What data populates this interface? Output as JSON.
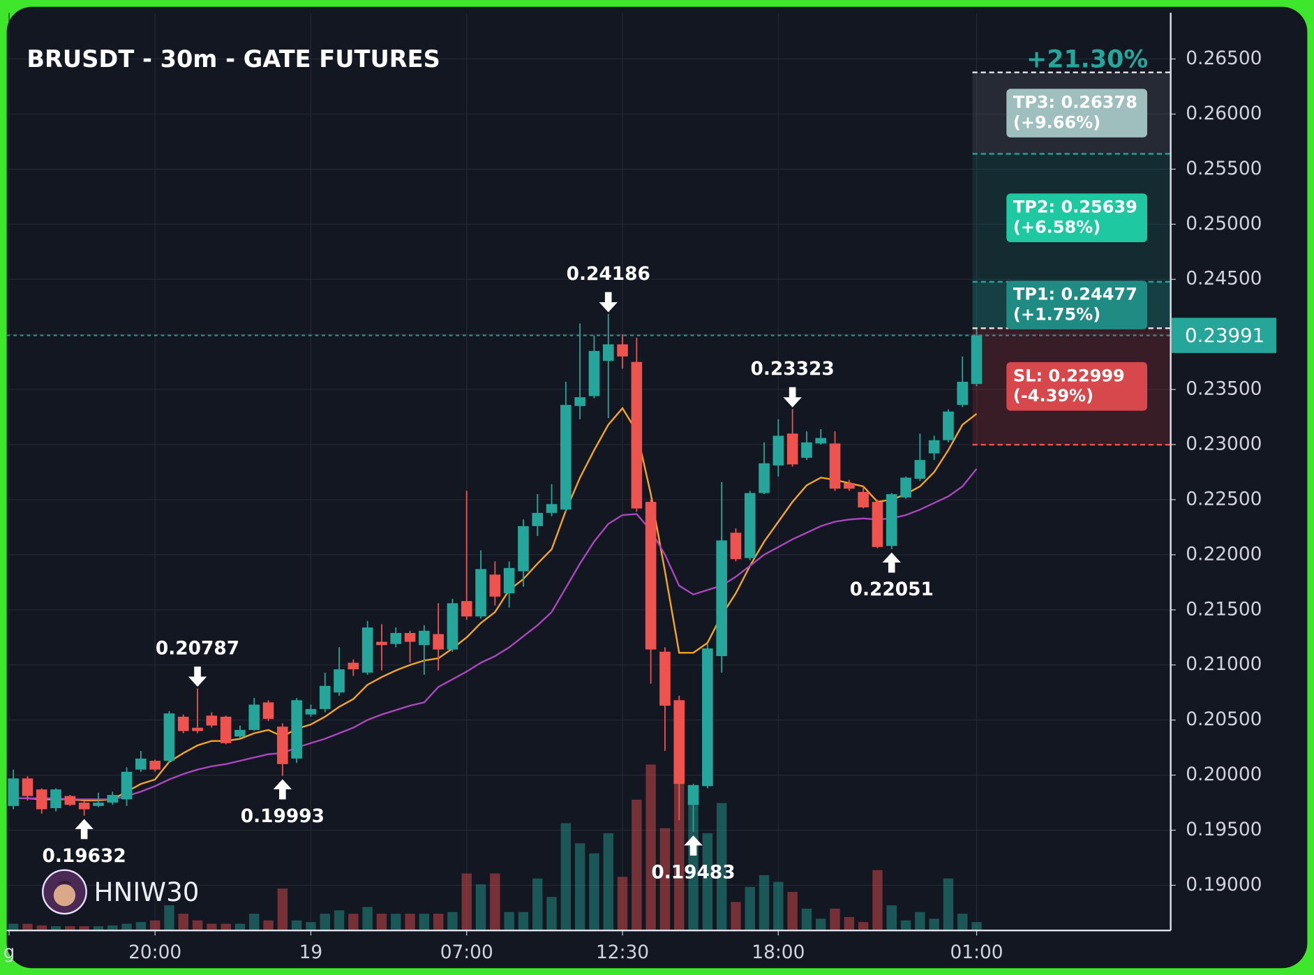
{
  "chart_data": {
    "type": "candlestick",
    "title": "BRUSDT - 30m - GATE FUTURES",
    "watermark": "HNIW30",
    "up_color": "#26a69a",
    "down_color": "#ef5350",
    "grid": true,
    "ylim": [
      0.1859,
      0.2692
    ],
    "yticks": [
      {
        "value": 0.19,
        "label": "0.19000"
      },
      {
        "value": 0.195,
        "label": "0.19500"
      },
      {
        "value": 0.2,
        "label": "0.20000"
      },
      {
        "value": 0.205,
        "label": "0.20500"
      },
      {
        "value": 0.21,
        "label": "0.21000"
      },
      {
        "value": 0.215,
        "label": "0.21500"
      },
      {
        "value": 0.22,
        "label": "0.22000"
      },
      {
        "value": 0.225,
        "label": "0.22500"
      },
      {
        "value": 0.23,
        "label": "0.23000"
      },
      {
        "value": 0.235,
        "label": "0.23500"
      },
      {
        "value": 0.24,
        "label": "0.24000"
      },
      {
        "value": 0.245,
        "label": "0.24500"
      },
      {
        "value": 0.25,
        "label": "0.25000"
      },
      {
        "value": 0.255,
        "label": "0.25500"
      },
      {
        "value": 0.26,
        "label": "0.26000"
      },
      {
        "value": 0.265,
        "label": "0.26500"
      }
    ],
    "xlim": [
      -0.47,
      81.7
    ],
    "xticks": [
      {
        "value": -0.3,
        "label": "g"
      },
      {
        "value": 10,
        "label": "20:00"
      },
      {
        "value": 21,
        "label": "19"
      },
      {
        "value": 32,
        "label": "07:00"
      },
      {
        "value": 43,
        "label": "12:30"
      },
      {
        "value": 54,
        "label": "18:00"
      },
      {
        "value": 68,
        "label": "01:00"
      }
    ],
    "open": [
      0.1972,
      0.1997,
      0.1987,
      0.197,
      0.1981,
      0.1975,
      0.1972,
      0.1975,
      0.1978,
      0.2005,
      0.2013,
      0.2013,
      0.2053,
      0.2043,
      0.2054,
      0.2053,
      0.2035,
      0.2041,
      0.2066,
      0.2044,
      0.2015,
      0.2055,
      0.206,
      0.2075,
      0.2102,
      0.2093,
      0.2121,
      0.2119,
      0.2129,
      0.2118,
      0.2128,
      0.2114,
      0.2158,
      0.2144,
      0.2182,
      0.2165,
      0.2185,
      0.2226,
      0.2238,
      0.2241,
      0.2335,
      0.2344,
      0.2376,
      0.2391,
      0.2375,
      0.2248,
      0.2112,
      0.2068,
      0.1973,
      0.199,
      0.2108,
      0.222,
      0.2197,
      0.2256,
      0.2281,
      0.231,
      0.2288,
      0.2301,
      0.2301,
      0.2265,
      0.2257,
      0.2248,
      0.2208,
      0.2252,
      0.2269,
      0.2292,
      0.2304,
      0.2336,
      0.2355
    ],
    "high": [
      0.2005,
      0.1999,
      0.1988,
      0.1988,
      0.1982,
      0.1976,
      0.1984,
      0.1985,
      0.2007,
      0.2022,
      0.2014,
      0.2058,
      0.2055,
      0.20787,
      0.2057,
      0.2054,
      0.2045,
      0.207,
      0.2068,
      0.2047,
      0.207,
      0.2064,
      0.2093,
      0.2116,
      0.2105,
      0.214,
      0.2137,
      0.2134,
      0.2131,
      0.2136,
      0.2156,
      0.216,
      0.2258,
      0.2204,
      0.2194,
      0.2194,
      0.2232,
      0.2255,
      0.2264,
      0.2357,
      0.241,
      0.2399,
      0.24186,
      0.24,
      0.2397,
      0.225,
      0.2116,
      0.2072,
      0.1992,
      0.2119,
      0.2266,
      0.2224,
      0.2258,
      0.2302,
      0.2323,
      0.23323,
      0.2312,
      0.2314,
      0.2312,
      0.2268,
      0.2262,
      0.225,
      0.2256,
      0.2271,
      0.231,
      0.2308,
      0.2332,
      0.238,
      0.2406
    ],
    "low": [
      0.1969,
      0.1977,
      0.1965,
      0.1967,
      0.1972,
      0.19632,
      0.1971,
      0.1973,
      0.1972,
      0.2003,
      0.2003,
      0.2011,
      0.2038,
      0.2038,
      0.2043,
      0.2028,
      0.2034,
      0.204,
      0.2049,
      0.19993,
      0.2011,
      0.2053,
      0.2057,
      0.2072,
      0.209,
      0.2091,
      0.2095,
      0.2116,
      0.2102,
      0.2091,
      0.2095,
      0.2112,
      0.2141,
      0.2142,
      0.2154,
      0.2152,
      0.2171,
      0.2217,
      0.2235,
      0.2239,
      0.2323,
      0.2342,
      0.2324,
      0.2369,
      0.2239,
      0.2083,
      0.2022,
      0.1959,
      0.19483,
      0.1988,
      0.2093,
      0.2194,
      0.2195,
      0.2255,
      0.2271,
      0.228,
      0.2286,
      0.23,
      0.2258,
      0.2258,
      0.2242,
      0.2206,
      0.22051,
      0.2251,
      0.2267,
      0.2286,
      0.2302,
      0.2334,
      0.2353
    ],
    "close": [
      0.1997,
      0.1981,
      0.1969,
      0.1987,
      0.1973,
      0.1969,
      0.1975,
      0.1982,
      0.2003,
      0.2015,
      0.2005,
      0.2056,
      0.204,
      0.204,
      0.2045,
      0.2029,
      0.2041,
      0.2064,
      0.2051,
      0.201,
      0.2068,
      0.206,
      0.2081,
      0.2096,
      0.2096,
      0.2134,
      0.2118,
      0.2129,
      0.2121,
      0.2131,
      0.2114,
      0.2156,
      0.2144,
      0.2187,
      0.2162,
      0.2188,
      0.2226,
      0.2238,
      0.2246,
      0.2336,
      0.2343,
      0.2385,
      0.2391,
      0.238,
      0.2242,
      0.2114,
      0.2063,
      0.1992,
      0.1991,
      0.2115,
      0.2213,
      0.2196,
      0.2256,
      0.2283,
      0.2308,
      0.2282,
      0.2302,
      0.2306,
      0.226,
      0.226,
      0.2243,
      0.2207,
      0.2255,
      0.227,
      0.2286,
      0.2304,
      0.233,
      0.2357,
      0.23991
    ],
    "volume_lim": [
      0,
      1095
    ],
    "volume": [
      8,
      8,
      6,
      5,
      5,
      5,
      5,
      6,
      8,
      10,
      12,
      30,
      20,
      12,
      8,
      8,
      8,
      20,
      12,
      50,
      12,
      10,
      20,
      24,
      20,
      28,
      20,
      20,
      20,
      20,
      20,
      22,
      68,
      55,
      68,
      22,
      22,
      62,
      40,
      128,
      104,
      92,
      116,
      64,
      156,
      198,
      122,
      182,
      170,
      116,
      152,
      34,
      52,
      66,
      58,
      46,
      26,
      14,
      26,
      16,
      10,
      72,
      30,
      12,
      22,
      14,
      62,
      20,
      10
    ],
    "ema": [
      {
        "color": "#f5a623",
        "values": [
          0.1979,
          0.1979,
          0.1978,
          0.1978,
          0.1978,
          0.1977,
          0.1977,
          0.1978,
          0.1985,
          0.1992,
          0.1996,
          0.2012,
          0.202,
          0.2027,
          0.2031,
          0.2031,
          0.2033,
          0.2038,
          0.2041,
          0.2035,
          0.2042,
          0.2046,
          0.2053,
          0.2062,
          0.2069,
          0.2082,
          0.2089,
          0.2095,
          0.21,
          0.2104,
          0.2106,
          0.2115,
          0.2125,
          0.2138,
          0.2148,
          0.2168,
          0.2178,
          0.2192,
          0.2205,
          0.224,
          0.227,
          0.2295,
          0.2318,
          0.2333,
          0.2312,
          0.2255,
          0.2185,
          0.2111,
          0.2111,
          0.212,
          0.2145,
          0.2165,
          0.219,
          0.2212,
          0.223,
          0.2248,
          0.2263,
          0.227,
          0.2268,
          0.2265,
          0.2262,
          0.2248,
          0.225,
          0.2255,
          0.2262,
          0.2275,
          0.2295,
          0.2318,
          0.2328
        ]
      },
      {
        "color": "#ab47bc",
        "values": [
          0.1979,
          0.1979,
          0.1979,
          0.1979,
          0.1978,
          0.1978,
          0.1978,
          0.1978,
          0.1981,
          0.1985,
          0.199,
          0.1996,
          0.2001,
          0.2005,
          0.2008,
          0.201,
          0.2013,
          0.2016,
          0.2019,
          0.202,
          0.2025,
          0.2029,
          0.2033,
          0.2038,
          0.2043,
          0.205,
          0.2055,
          0.2059,
          0.2063,
          0.2066,
          0.208,
          0.2087,
          0.2094,
          0.2102,
          0.2108,
          0.2116,
          0.2126,
          0.2136,
          0.2148,
          0.217,
          0.2192,
          0.2212,
          0.2228,
          0.2236,
          0.2237,
          0.2222,
          0.22,
          0.2172,
          0.2164,
          0.2168,
          0.2172,
          0.218,
          0.219,
          0.22,
          0.2207,
          0.2214,
          0.222,
          0.2226,
          0.223,
          0.2232,
          0.2233,
          0.2232,
          0.2233,
          0.2236,
          0.2241,
          0.2247,
          0.2253,
          0.2262,
          0.2278
        ]
      }
    ],
    "annotations": [
      {
        "x": 5,
        "value": 0.19632,
        "position": "below"
      },
      {
        "x": 13,
        "value": 0.20787,
        "position": "above"
      },
      {
        "x": 19,
        "value": 0.19993,
        "position": "below"
      },
      {
        "x": 42,
        "value": 0.24186,
        "position": "above"
      },
      {
        "x": 48,
        "value": 0.19483,
        "position": "below"
      },
      {
        "x": 55,
        "value": 0.23323,
        "position": "above"
      },
      {
        "x": 62,
        "value": 0.22051,
        "position": "below"
      }
    ],
    "current_price": 0.23991,
    "trade": {
      "pnl_label": "+21.30%",
      "entry": 0.24056,
      "tp3": {
        "value": 0.26378,
        "label": "TP3: 0.26378",
        "pct": "(+9.66%)"
      },
      "tp2": {
        "value": 0.25639,
        "label": "TP2: 0.25639",
        "pct": "(+6.58%)"
      },
      "tp1": {
        "value": 0.24477,
        "label": "TP1: 0.24477",
        "pct": "(+1.75%)"
      },
      "sl": {
        "value": 0.22999,
        "label": "SL: 0.22999",
        "pct": "(-4.39%)"
      }
    }
  }
}
